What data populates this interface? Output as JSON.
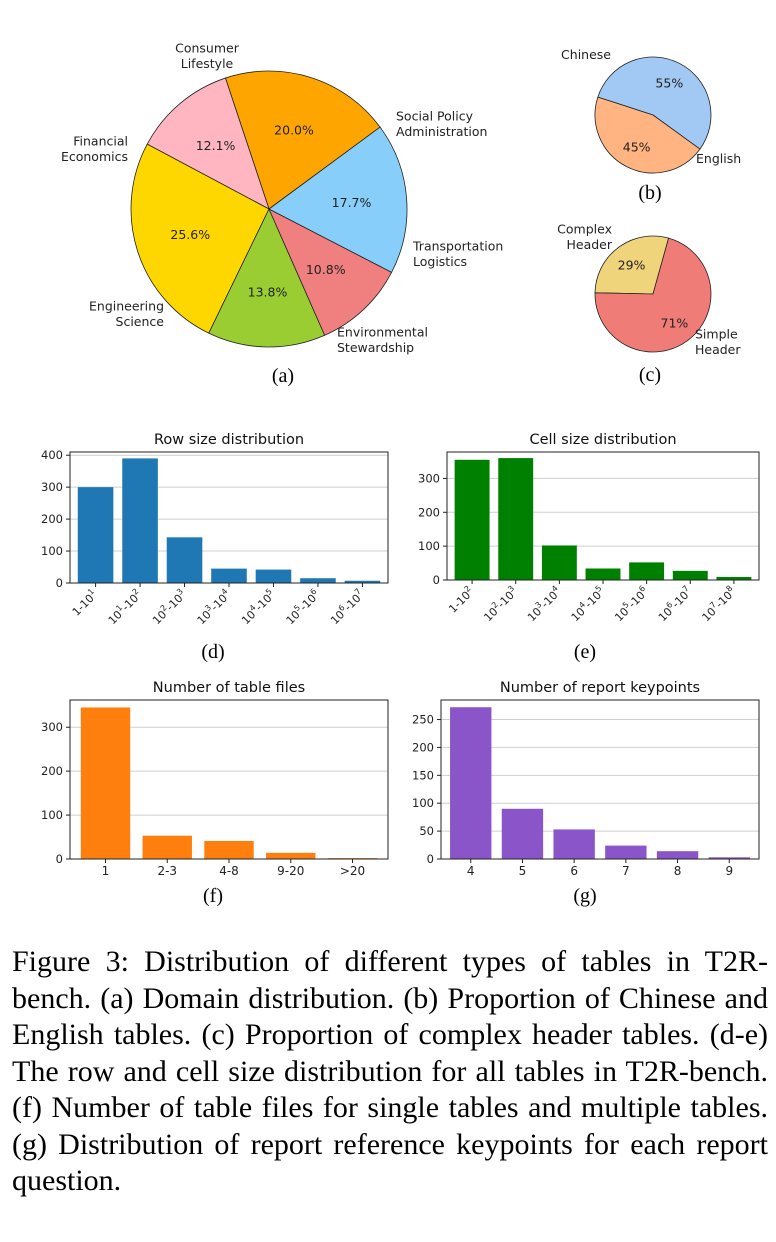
{
  "figure": {
    "caption": "Figure 3: Distribution of different types of tables in T2R-bench. (a) Domain distribution. (b) Proportion of Chinese and English tables. (c) Proportion of complex header tables. (d-e) The row and cell size distribution for all tables in T2R-bench. (f) Number of table files for single tables and multiple tables. (g) Distribution of report reference keypoints for each report question."
  },
  "chart_data": [
    {
      "id": "a",
      "type": "pie",
      "panel_label": "(a)",
      "slices": [
        {
          "label": "Consumer\nLifestyle",
          "value": 20.0,
          "pct_label": "20.0%",
          "color": "#ffa500"
        },
        {
          "label": "Financial\nEconomics",
          "value": 12.1,
          "pct_label": "12.1%",
          "color": "#ffb6c1"
        },
        {
          "label": "Engineering\nScience",
          "value": 25.6,
          "pct_label": "25.6%",
          "color": "#ffd700"
        },
        {
          "label": "Environmental\nStewardship",
          "value": 13.8,
          "pct_label": "13.8%",
          "color": "#9acd32"
        },
        {
          "label": "Transportation\nLogistics",
          "value": 10.8,
          "pct_label": "10.8%",
          "color": "#f08080"
        },
        {
          "label": "Social Policy\nAdministration",
          "value": 17.7,
          "pct_label": "17.7%",
          "color": "#87cefa"
        }
      ]
    },
    {
      "id": "b",
      "type": "pie",
      "panel_label": "(b)",
      "slices": [
        {
          "label": "Chinese",
          "value": 55,
          "pct_label": "55%",
          "color": "#a1c9f4"
        },
        {
          "label": "English",
          "value": 45,
          "pct_label": "45%",
          "color": "#ffb482"
        }
      ]
    },
    {
      "id": "c",
      "type": "pie",
      "panel_label": "(c)",
      "slices": [
        {
          "label": "Complex\nHeader",
          "value": 29,
          "pct_label": "29%",
          "color": "#f0d47c"
        },
        {
          "label": "Simple\nHeader",
          "value": 71,
          "pct_label": "71%",
          "color": "#f07c78"
        }
      ]
    },
    {
      "id": "d",
      "type": "bar",
      "title": "Row size distribution",
      "panel_label": "(d)",
      "color": "#1f77b4",
      "categories": [
        [
          "1-10",
          "1"
        ],
        [
          "10",
          "1",
          "-10",
          "2"
        ],
        [
          "10",
          "2",
          "-10",
          "3"
        ],
        [
          "10",
          "3",
          "-10",
          "4"
        ],
        [
          "10",
          "4",
          "-10",
          "5"
        ],
        [
          "10",
          "5",
          "-10",
          "6"
        ],
        [
          "10",
          "6",
          "-10",
          "7"
        ]
      ],
      "values": [
        300,
        390,
        143,
        45,
        42,
        15,
        7
      ],
      "ylim": [
        0,
        410
      ],
      "yticks": [
        0,
        100,
        200,
        300,
        400
      ],
      "rotate_ticks": true
    },
    {
      "id": "e",
      "type": "bar",
      "title": "Cell size distribution",
      "panel_label": "(e)",
      "color": "#008000",
      "categories": [
        [
          "1-10",
          "2"
        ],
        [
          "10",
          "2",
          "-10",
          "3"
        ],
        [
          "10",
          "3",
          "-10",
          "4"
        ],
        [
          "10",
          "4",
          "-10",
          "5"
        ],
        [
          "10",
          "5",
          "-10",
          "6"
        ],
        [
          "10",
          "6",
          "-10",
          "7"
        ],
        [
          "10",
          "7",
          "-10",
          "8"
        ]
      ],
      "values": [
        355,
        360,
        102,
        34,
        52,
        27,
        9
      ],
      "ylim": [
        0,
        378
      ],
      "yticks": [
        0,
        100,
        200,
        300
      ],
      "rotate_ticks": true
    },
    {
      "id": "f",
      "type": "bar",
      "title": "Number of table files",
      "panel_label": "(f)",
      "color": "#ff7f0e",
      "categories": [
        "1",
        "2-3",
        "4-8",
        "9-20",
        ">20"
      ],
      "values": [
        345,
        53,
        41,
        14,
        2
      ],
      "ylim": [
        0,
        362
      ],
      "yticks": [
        0,
        100,
        200,
        300
      ],
      "rotate_ticks": false
    },
    {
      "id": "g",
      "type": "bar",
      "title": "Number of report keypoints",
      "panel_label": "(g)",
      "color": "#8a55c8",
      "categories": [
        "4",
        "5",
        "6",
        "7",
        "8",
        "9"
      ],
      "values": [
        272,
        90,
        53,
        24,
        14,
        3
      ],
      "ylim": [
        0,
        285
      ],
      "yticks": [
        0,
        50,
        100,
        150,
        200,
        250
      ],
      "rotate_ticks": false
    }
  ]
}
